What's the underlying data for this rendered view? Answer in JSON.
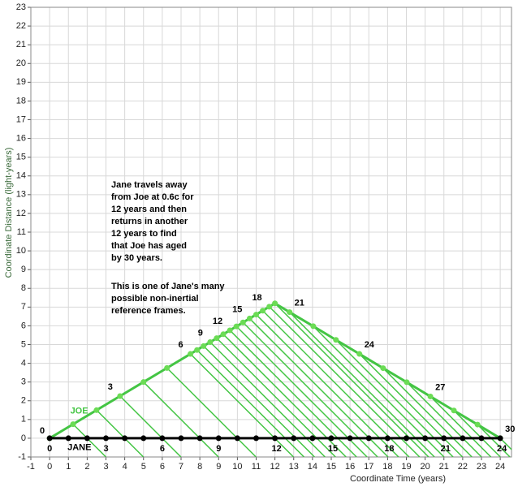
{
  "chart_data": {
    "type": "line",
    "xlabel": "Coordinate Time (years)",
    "ylabel": "Coordinate Distance (light-years)",
    "xlim": [
      -1,
      24.6
    ],
    "ylim": [
      -1,
      23
    ],
    "xticks": [
      -1,
      0,
      1,
      2,
      3,
      4,
      5,
      6,
      7,
      8,
      9,
      10,
      11,
      12,
      13,
      14,
      15,
      16,
      17,
      18,
      19,
      20,
      21,
      22,
      23,
      24
    ],
    "yticks": [
      -1,
      0,
      1,
      2,
      3,
      4,
      5,
      6,
      7,
      8,
      9,
      10,
      11,
      12,
      13,
      14,
      15,
      16,
      17,
      18,
      19,
      20,
      21,
      22,
      23
    ],
    "grid": true,
    "annotations": [
      [
        "Jane travels away",
        "from Joe at 0.6c for",
        "12 years and then",
        "returns in another",
        "12 years to find",
        "that Joe has aged",
        "by 30 years."
      ],
      [
        "This is one of Jane's many",
        "possible non-inertial",
        "reference frames."
      ]
    ],
    "series": [
      {
        "name": "JOE",
        "color": "#44c544",
        "x": [
          0,
          1.25,
          2.5,
          3.75,
          5,
          6.25,
          7.5,
          7.85,
          8.2,
          8.55,
          8.9,
          9.25,
          9.6,
          9.95,
          10.3,
          10.65,
          11.0,
          11.35,
          11.7,
          12,
          12.78,
          14.04,
          15.25,
          16.5,
          17.76,
          19.02,
          20.28,
          21.53,
          22.79,
          24
        ],
        "values": [
          0,
          0.75,
          1.5,
          2.25,
          3,
          3.75,
          4.5,
          4.71,
          4.92,
          5.13,
          5.34,
          5.55,
          5.76,
          5.97,
          6.18,
          6.39,
          6.6,
          6.81,
          7.02,
          7.2,
          6.73,
          5.98,
          5.25,
          4.5,
          3.74,
          2.99,
          2.23,
          1.48,
          0.73,
          0
        ],
        "point_labels": [
          "0",
          null,
          null,
          "3",
          null,
          null,
          "6",
          null,
          null,
          "9",
          null,
          null,
          "12",
          null,
          null,
          "15",
          null,
          null,
          "18",
          null,
          "21",
          null,
          null,
          "24",
          null,
          null,
          "27",
          null,
          null,
          "30"
        ]
      },
      {
        "name": "JANE",
        "color": "#000000",
        "x": [
          0,
          1,
          2,
          3,
          4,
          5,
          6,
          7,
          8,
          9,
          10,
          11,
          12,
          13,
          14,
          15,
          16,
          17,
          18,
          19,
          20,
          21,
          22,
          23,
          24
        ],
        "values": [
          0,
          0,
          0,
          0,
          0,
          0,
          0,
          0,
          0,
          0,
          0,
          0,
          0,
          0,
          0,
          0,
          0,
          0,
          0,
          0,
          0,
          0,
          0,
          0,
          0
        ],
        "point_labels": [
          "0",
          null,
          null,
          "3",
          null,
          null,
          "6",
          null,
          null,
          "9",
          null,
          null,
          "12",
          null,
          null,
          "15",
          null,
          null,
          "18",
          null,
          null,
          "21",
          null,
          null,
          "24"
        ]
      }
    ]
  }
}
